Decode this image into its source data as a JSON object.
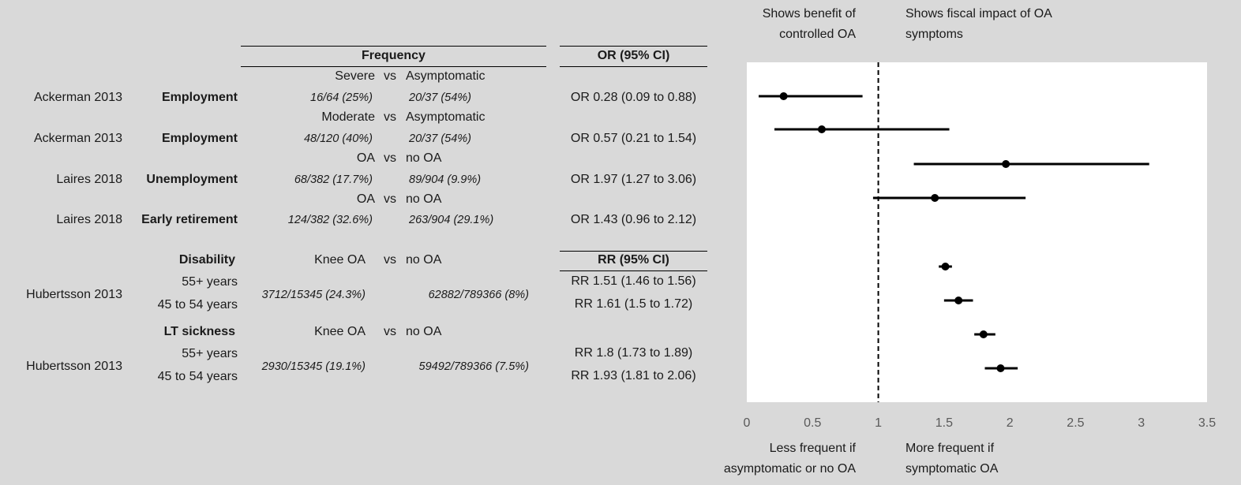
{
  "header": {
    "frequency": "Frequency",
    "or_header": "OR (95% CI)",
    "rr_header": "RR (95% CI)",
    "benefit_label": [
      "Shows benefit of",
      "controlled OA"
    ],
    "impact_label": [
      "Shows fiscal impact of OA",
      "symptoms"
    ],
    "less_label": [
      "Less frequent if",
      "asymptomatic or no OA"
    ],
    "more_label": [
      "More frequent if",
      "symptomatic OA"
    ]
  },
  "table": {
    "groups": [
      {
        "compare": [
          "Severe",
          "vs",
          "Asymptomatic"
        ],
        "study": "Ackerman 2013",
        "outcome": "Employment",
        "freq1": "16/64 (25%)",
        "freq2": "20/37 (54%)",
        "ci": "OR 0.28 (0.09 to 0.88)"
      },
      {
        "compare": [
          "Moderate",
          "vs",
          "Asymptomatic"
        ],
        "study": "Ackerman 2013",
        "outcome": "Employment",
        "freq1": "48/120 (40%)",
        "freq2": "20/37 (54%)",
        "ci": "OR 0.57 (0.21 to 1.54)"
      },
      {
        "compare": [
          "OA",
          "vs",
          "no OA"
        ],
        "study": "Laires 2018",
        "outcome": "Unemployment",
        "freq1": "68/382 (17.7%)",
        "freq2": "89/904 (9.9%)",
        "ci": "OR 1.97 (1.27 to 3.06)"
      },
      {
        "compare": [
          "OA",
          "vs",
          "no OA"
        ],
        "study": "Laires 2018",
        "outcome": "Early retirement",
        "freq1": "124/382 (32.6%)",
        "freq2": "263/904 (29.1%)",
        "ci": "OR 1.43 (0.96 to 2.12)"
      }
    ],
    "blocks": [
      {
        "outcome": "Disability",
        "compare": [
          "Knee OA",
          "vs",
          "no OA"
        ],
        "study": "Hubertsson 2013",
        "age1": "55+ years",
        "age2": "45 to 54 years",
        "freq1": "3712/15345 (24.3%)",
        "freq2": "62882/789366 (8%)",
        "ci1": "RR 1.51 (1.46 to 1.56)",
        "ci2": "RR 1.61 (1.5 to 1.72)"
      },
      {
        "outcome": "LT sickness",
        "compare": [
          "Knee OA",
          "vs",
          "no OA"
        ],
        "study": "Hubertsson 2013",
        "age1": "55+ years",
        "age2": "45 to 54 years",
        "freq1": "2930/15345 (19.1%)",
        "freq2": "59492/789366 (7.5%)",
        "ci1": "RR 1.8 (1.73 to 1.89)",
        "ci2": "RR 1.93 (1.81 to 2.06)"
      }
    ]
  },
  "chart_data": {
    "type": "scatter",
    "subtype": "forest",
    "xlim": [
      0,
      3.5
    ],
    "xticks": [
      0,
      0.5,
      1,
      1.5,
      2,
      2.5,
      3,
      3.5
    ],
    "xtick_labels": [
      "0",
      "0.5",
      "1",
      "1.5",
      "2",
      "2.5",
      "3",
      "3.5"
    ],
    "reference_line": 1,
    "reference_style": "dashed",
    "points": [
      {
        "label": "OR 0.28 (0.09 to 0.88)",
        "est": 0.28,
        "lo": 0.09,
        "hi": 0.88
      },
      {
        "label": "OR 0.57 (0.21 to 1.54)",
        "est": 0.57,
        "lo": 0.21,
        "hi": 1.54
      },
      {
        "label": "OR 1.97 (1.27 to 3.06)",
        "est": 1.97,
        "lo": 1.27,
        "hi": 3.06
      },
      {
        "label": "OR 1.43 (0.96 to 2.12)",
        "est": 1.43,
        "lo": 0.96,
        "hi": 2.12
      },
      {
        "label": "RR 1.51 (1.46 to 1.56)",
        "est": 1.51,
        "lo": 1.46,
        "hi": 1.56
      },
      {
        "label": "RR 1.61 (1.5 to 1.72)",
        "est": 1.61,
        "lo": 1.5,
        "hi": 1.72
      },
      {
        "label": "RR 1.8 (1.73 to 1.89)",
        "est": 1.8,
        "lo": 1.73,
        "hi": 1.89
      },
      {
        "label": "RR 1.93 (1.81 to 2.06)",
        "est": 1.93,
        "lo": 1.81,
        "hi": 2.06
      }
    ]
  }
}
